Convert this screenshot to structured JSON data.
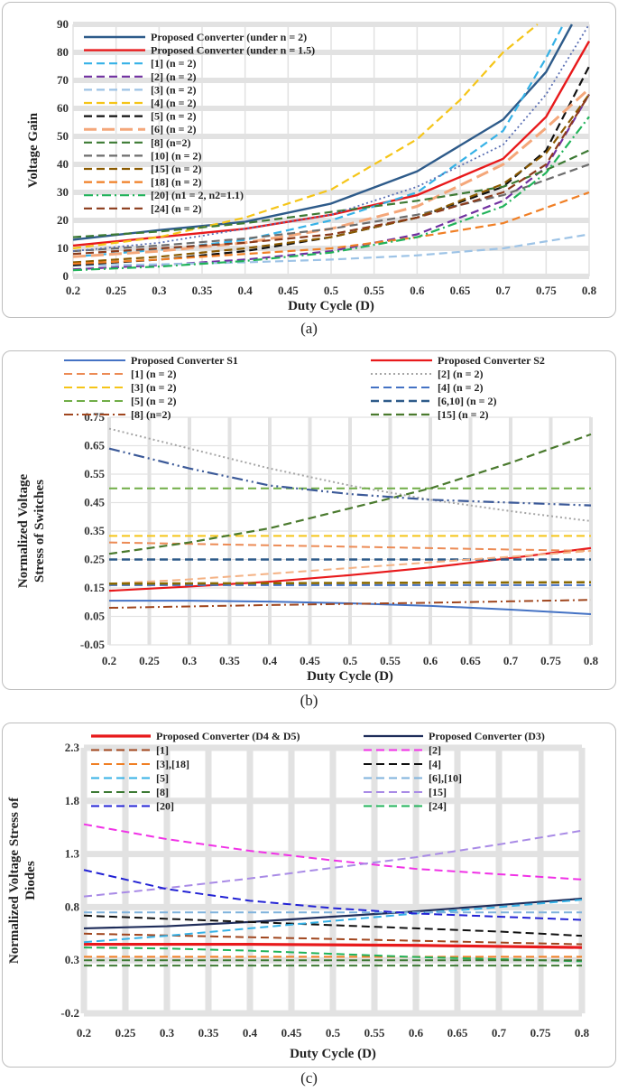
{
  "captions": [
    "(a)",
    "(b)",
    "(c)"
  ],
  "chart_data": [
    {
      "type": "line",
      "xlabel": "Duty Cycle (D)",
      "ylabel": "Voltage Gain",
      "xlim": [
        0.2,
        0.8
      ],
      "ylim": [
        0,
        90
      ],
      "xticks": [
        "0.2",
        "0.25",
        "0.3",
        "0.35",
        "0.4",
        "0.45",
        "0.5",
        "0.55",
        "0.6",
        "0.65",
        "0.7",
        "0.75",
        "0.8"
      ],
      "yticks": [
        "0",
        "10",
        "20",
        "30",
        "40",
        "50",
        "60",
        "70",
        "80",
        "90"
      ],
      "grid": true,
      "legend_position": "top-left",
      "series": [
        {
          "name": "Proposed Converter (under n = 2)",
          "color": "#2e5b8a",
          "dash": "solid",
          "width": 2.4,
          "x": [
            0.2,
            0.3,
            0.4,
            0.5,
            0.6,
            0.7,
            0.75,
            0.78
          ],
          "y": [
            13.1,
            16.5,
            19.5,
            26,
            37.5,
            56,
            73,
            90
          ]
        },
        {
          "name": "Proposed Converter (under n = 1.5)",
          "color": "#e8191b",
          "dash": "solid",
          "width": 2.4,
          "x": [
            0.2,
            0.3,
            0.4,
            0.5,
            0.6,
            0.7,
            0.75,
            0.8
          ],
          "y": [
            11,
            14,
            17,
            22,
            29,
            42,
            57,
            84
          ]
        },
        {
          "name": "[1] (n = 2)",
          "color": "#35b1e6",
          "dash": "long",
          "width": 2.2,
          "x": [
            0.2,
            0.3,
            0.4,
            0.5,
            0.6,
            0.7,
            0.75,
            0.77
          ],
          "y": [
            7,
            9.5,
            13,
            20,
            30,
            52,
            78,
            90
          ]
        },
        {
          "name": "[2] (n = 2)",
          "color": "#7030a0",
          "dash": "long",
          "width": 2.2,
          "x": [
            0.2,
            0.3,
            0.4,
            0.5,
            0.6,
            0.7,
            0.75,
            0.8
          ],
          "y": [
            2.5,
            4,
            6,
            9,
            15,
            27,
            39,
            65
          ]
        },
        {
          "name": "[3] (n = 2)",
          "color": "#9dc3e6",
          "dash": "long",
          "width": 2.2,
          "x": [
            0.2,
            0.3,
            0.4,
            0.5,
            0.6,
            0.7,
            0.8
          ],
          "y": [
            3.8,
            4.3,
            5,
            6,
            7.5,
            10,
            15
          ]
        },
        {
          "name": "[4] (n = 2)",
          "color": "#f5c518",
          "dash": "long",
          "width": 2.2,
          "x": [
            0.2,
            0.3,
            0.4,
            0.5,
            0.6,
            0.65,
            0.7,
            0.74
          ],
          "y": [
            10,
            14,
            21,
            31,
            49,
            63,
            80,
            90
          ]
        },
        {
          "name": "[5] (n = 2)",
          "color": "#111111",
          "dash": "long",
          "width": 2.2,
          "x": [
            0.2,
            0.3,
            0.4,
            0.5,
            0.6,
            0.7,
            0.75,
            0.8
          ],
          "y": [
            4,
            6,
            9,
            14,
            21,
            32,
            45,
            75
          ]
        },
        {
          "name": "[6] (n = 2)",
          "color": "#f4a77a",
          "dash": "xlong",
          "width": 3,
          "x": [
            0.2,
            0.3,
            0.4,
            0.5,
            0.6,
            0.7,
            0.75,
            0.8
          ],
          "y": [
            7,
            9,
            12,
            17,
            25,
            40,
            53,
            67
          ]
        },
        {
          "name": "[8] (n=2)",
          "color": "#3d7a34",
          "dash": "long",
          "width": 2.2,
          "x": [
            0.2,
            0.3,
            0.4,
            0.5,
            0.6,
            0.7,
            0.75,
            0.8
          ],
          "y": [
            14,
            16,
            19,
            23,
            27,
            32,
            38,
            45
          ]
        },
        {
          "name": "[10] (n = 2)",
          "color": "#6d6d6d",
          "dash": "long",
          "width": 2.2,
          "x": [
            0.2,
            0.3,
            0.4,
            0.5,
            0.6,
            0.7,
            0.8
          ],
          "y": [
            9,
            11,
            13.5,
            17,
            22,
            29,
            40
          ]
        },
        {
          "name": "[15] (n = 2)",
          "color": "#8b5a00",
          "dash": "long",
          "width": 2.2,
          "x": [
            0.2,
            0.3,
            0.4,
            0.5,
            0.6,
            0.7,
            0.75,
            0.8
          ],
          "y": [
            5,
            7,
            10,
            14,
            21,
            33,
            44,
            65
          ]
        },
        {
          "name": "[18] (n = 2)",
          "color": "#f07f25",
          "dash": "long",
          "width": 2.2,
          "x": [
            0.2,
            0.3,
            0.4,
            0.5,
            0.6,
            0.7,
            0.8
          ],
          "y": [
            4.5,
            6,
            8,
            10,
            14,
            19,
            30
          ]
        },
        {
          "name": "[20] (n1 = 2, n2=1.1)",
          "color": "#21b35a",
          "dash": "dashdot",
          "width": 2.2,
          "x": [
            0.2,
            0.3,
            0.4,
            0.5,
            0.6,
            0.7,
            0.75,
            0.8
          ],
          "y": [
            2.2,
            3.5,
            5.5,
            8.5,
            14,
            25,
            37,
            57
          ]
        },
        {
          "name": "[24] (n = 2)",
          "color": "#8b3a1a",
          "dash": "long",
          "width": 2.2,
          "x": [
            0.2,
            0.3,
            0.4,
            0.5,
            0.6,
            0.7,
            0.75,
            0.8
          ],
          "y": [
            8,
            10,
            12,
            15,
            21,
            30,
            40,
            65
          ]
        },
        {
          "name": "",
          "color": "#5a6fb3",
          "dash": "dot",
          "width": 1.8,
          "x": [
            0.2,
            0.3,
            0.4,
            0.5,
            0.6,
            0.7,
            0.75,
            0.8
          ],
          "y": [
            9,
            12,
            17,
            22,
            32,
            47,
            65,
            90
          ]
        }
      ]
    },
    {
      "type": "line",
      "xlabel": "Duty Cycle (D)",
      "ylabel": "Normalized Voltage Stress of Switches",
      "xlim": [
        0.2,
        0.8
      ],
      "ylim": [
        -0.05,
        0.75
      ],
      "xticks": [
        "0.2",
        "0.25",
        "0.3",
        "0.35",
        "0.4",
        "0.45",
        "0.5",
        "0.55",
        "0.6",
        "0.65",
        "0.7",
        "0.75",
        "0.8"
      ],
      "yticks": [
        "-0.05",
        "0.05",
        "0.15",
        "0.25",
        "0.35",
        "0.45",
        "0.55",
        "0.65",
        "0.75"
      ],
      "grid": true,
      "legend_position": "top",
      "series": [
        {
          "name": "Proposed Converter S1",
          "color": "#4472c4",
          "dash": "solid",
          "width": 2,
          "x": [
            0.2,
            0.3,
            0.4,
            0.5,
            0.6,
            0.7,
            0.8
          ],
          "y": [
            0.105,
            0.105,
            0.102,
            0.096,
            0.087,
            0.074,
            0.058
          ]
        },
        {
          "name": "Proposed Converter S2",
          "color": "#e8191b",
          "dash": "solid",
          "width": 2.2,
          "x": [
            0.2,
            0.3,
            0.4,
            0.5,
            0.6,
            0.7,
            0.8
          ],
          "y": [
            0.14,
            0.155,
            0.172,
            0.195,
            0.222,
            0.255,
            0.29
          ]
        },
        {
          "name": "[1] (n = 2)",
          "color": "#ec8b55",
          "dash": "long",
          "width": 2,
          "x": [
            0.2,
            0.3,
            0.4,
            0.5,
            0.6,
            0.7,
            0.8
          ],
          "y": [
            0.31,
            0.305,
            0.3,
            0.295,
            0.29,
            0.285,
            0.28
          ]
        },
        {
          "name": "[2] (n = 2)",
          "color": "#a6a6a6",
          "dash": "dot",
          "width": 2,
          "x": [
            0.2,
            0.3,
            0.4,
            0.5,
            0.6,
            0.7,
            0.8
          ],
          "y": [
            0.71,
            0.64,
            0.57,
            0.51,
            0.46,
            0.42,
            0.385
          ]
        },
        {
          "name": "[3] (n = 2)",
          "color": "#f5c518",
          "dash": "long",
          "width": 2,
          "x": [
            0.2,
            0.8
          ],
          "y": [
            0.333,
            0.333
          ]
        },
        {
          "name": "[4] (n = 2)",
          "color": "#4472c4",
          "dash": "long",
          "width": 2,
          "x": [
            0.2,
            0.8
          ],
          "y": [
            0.16,
            0.16
          ]
        },
        {
          "name": "[5] (n = 2)",
          "color": "#70ad47",
          "dash": "long",
          "width": 2,
          "x": [
            0.2,
            0.8
          ],
          "y": [
            0.5,
            0.5
          ]
        },
        {
          "name": "[6,10] (n = 2)",
          "color": "#2e5b8a",
          "dash": "long",
          "width": 2.4,
          "x": [
            0.2,
            0.8
          ],
          "y": [
            0.25,
            0.25
          ]
        },
        {
          "name": "[8] (n=2)",
          "color": "#a0461e",
          "dash": "dashdot",
          "width": 2,
          "x": [
            0.2,
            0.3,
            0.4,
            0.5,
            0.6,
            0.7,
            0.8
          ],
          "y": [
            0.08,
            0.085,
            0.09,
            0.094,
            0.098,
            0.103,
            0.108
          ]
        },
        {
          "name": "[15] (n = 2)",
          "color": "#4a7a2e",
          "dash": "long",
          "width": 2.2,
          "x": [
            0.2,
            0.3,
            0.4,
            0.5,
            0.6,
            0.7,
            0.8
          ],
          "y": [
            0.27,
            0.31,
            0.36,
            0.43,
            0.5,
            0.59,
            0.69
          ]
        },
        {
          "name": "",
          "color": "#3b5998",
          "dash": "dashdotdot",
          "width": 2.2,
          "x": [
            0.2,
            0.3,
            0.4,
            0.5,
            0.6,
            0.7,
            0.8
          ],
          "y": [
            0.64,
            0.57,
            0.51,
            0.48,
            0.46,
            0.45,
            0.44
          ]
        },
        {
          "name": "",
          "color": "#f4b183",
          "dash": "long",
          "width": 2,
          "x": [
            0.2,
            0.3,
            0.4,
            0.5,
            0.6,
            0.7,
            0.8
          ],
          "y": [
            0.165,
            0.18,
            0.2,
            0.22,
            0.24,
            0.26,
            0.28
          ]
        },
        {
          "name": "",
          "color": "#8b6a00",
          "dash": "long",
          "width": 2.6,
          "x": [
            0.2,
            0.8
          ],
          "y": [
            0.165,
            0.17
          ]
        }
      ]
    },
    {
      "type": "line",
      "xlabel": "Duty Cycle (D)",
      "ylabel": "Normalized Voltage Stress of Diodes",
      "xlim": [
        0.2,
        0.8
      ],
      "ylim": [
        -0.2,
        2.3
      ],
      "xticks": [
        "0.2",
        "0.25",
        "0.3",
        "0.35",
        "0.4",
        "0.45",
        "0.5",
        "0.55",
        "0.6",
        "0.65",
        "0.7",
        "0.75",
        "0.8"
      ],
      "yticks": [
        "-0.2",
        "0.3",
        "0.8",
        "1.3",
        "1.8",
        "2.3"
      ],
      "grid": true,
      "legend_position": "top",
      "series": [
        {
          "name": "Proposed Converter (D4 & D5)",
          "color": "#e8191b",
          "dash": "solid",
          "width": 3.2,
          "x": [
            0.2,
            0.4,
            0.6,
            0.8
          ],
          "y": [
            0.45,
            0.45,
            0.44,
            0.42
          ]
        },
        {
          "name": "Proposed Converter (D3)",
          "color": "#1f2d5a",
          "dash": "solid",
          "width": 2.2,
          "x": [
            0.2,
            0.3,
            0.4,
            0.5,
            0.6,
            0.7,
            0.8
          ],
          "y": [
            0.6,
            0.62,
            0.66,
            0.71,
            0.76,
            0.82,
            0.88
          ]
        },
        {
          "name": "[1]",
          "color": "#a0461e",
          "dash": "long",
          "width": 2,
          "x": [
            0.2,
            0.8
          ],
          "y": [
            0.55,
            0.45
          ]
        },
        {
          "name": "[2]",
          "color": "#f032e6",
          "dash": "long",
          "width": 2,
          "x": [
            0.2,
            0.3,
            0.4,
            0.5,
            0.6,
            0.7,
            0.8
          ],
          "y": [
            1.58,
            1.44,
            1.33,
            1.24,
            1.16,
            1.11,
            1.06
          ]
        },
        {
          "name": "[3],[18]",
          "color": "#f07f25",
          "dash": "long",
          "width": 2,
          "x": [
            0.2,
            0.8
          ],
          "y": [
            0.333,
            0.333
          ]
        },
        {
          "name": "[4]",
          "color": "#111111",
          "dash": "long",
          "width": 2,
          "x": [
            0.2,
            0.3,
            0.4,
            0.5,
            0.6,
            0.7,
            0.8
          ],
          "y": [
            0.72,
            0.69,
            0.66,
            0.63,
            0.6,
            0.57,
            0.53
          ]
        },
        {
          "name": "[5]",
          "color": "#35b1e6",
          "dash": "long",
          "width": 2,
          "x": [
            0.2,
            0.3,
            0.4,
            0.5,
            0.6,
            0.7,
            0.8
          ],
          "y": [
            0.47,
            0.53,
            0.6,
            0.67,
            0.74,
            0.8,
            0.87
          ]
        },
        {
          "name": "[6],[10]",
          "color": "#7fb2dc",
          "dash": "long",
          "width": 2,
          "x": [
            0.2,
            0.8
          ],
          "y": [
            0.75,
            0.75
          ]
        },
        {
          "name": "[8]",
          "color": "#3d7a34",
          "dash": "long",
          "width": 2,
          "x": [
            0.2,
            0.8
          ],
          "y": [
            0.25,
            0.25
          ]
        },
        {
          "name": "[15]",
          "color": "#a98be6",
          "dash": "long",
          "width": 2,
          "x": [
            0.2,
            0.3,
            0.4,
            0.5,
            0.6,
            0.7,
            0.8
          ],
          "y": [
            0.9,
            0.98,
            1.07,
            1.17,
            1.27,
            1.39,
            1.52
          ]
        },
        {
          "name": "[20]",
          "color": "#2323d4",
          "dash": "long",
          "width": 2,
          "x": [
            0.2,
            0.3,
            0.4,
            0.5,
            0.6,
            0.7,
            0.8
          ],
          "y": [
            1.15,
            0.97,
            0.86,
            0.79,
            0.74,
            0.71,
            0.68
          ]
        },
        {
          "name": "[24]",
          "color": "#21b35a",
          "dash": "long",
          "width": 2,
          "x": [
            0.2,
            0.3,
            0.4,
            0.5,
            0.6,
            0.7,
            0.8
          ],
          "y": [
            0.42,
            0.41,
            0.39,
            0.36,
            0.33,
            0.31,
            0.29
          ]
        },
        {
          "name": "",
          "color": "#3d7a34",
          "dash": "long",
          "width": 2,
          "x": [
            0.2,
            0.8
          ],
          "y": [
            0.3,
            0.3
          ]
        }
      ]
    }
  ]
}
